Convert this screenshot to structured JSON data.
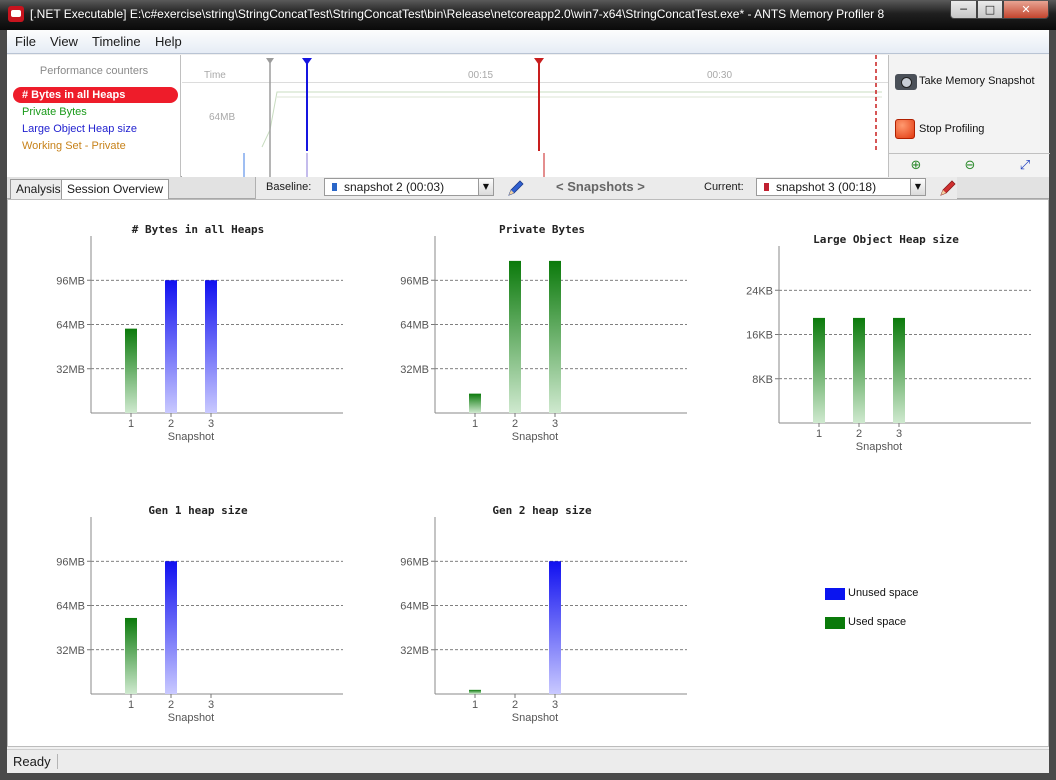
{
  "window": {
    "title": "[.NET Executable] E:\\c#exercise\\string\\StringConcatTest\\StringConcatTest\\bin\\Release\\netcoreapp2.0\\win7-x64\\StringConcatTest.exe* - ANTS Memory Profiler 8",
    "minimize": "─",
    "maximize": "□",
    "close": "✕"
  },
  "menu": {
    "file": "File",
    "view": "View",
    "timeline": "Timeline",
    "help": "Help"
  },
  "counters": {
    "title": "Performance counters",
    "items": [
      {
        "label": "# Bytes in all Heaps",
        "color": "#ffffff",
        "selected": true
      },
      {
        "label": "Private Bytes",
        "color": "#1a9a1a",
        "selected": false
      },
      {
        "label": "Large Object Heap size",
        "color": "#1f1fcf",
        "selected": false
      },
      {
        "label": "Working Set - Private",
        "color": "#c7821a",
        "selected": false
      }
    ]
  },
  "timeline": {
    "time_label": "Time",
    "tick_1": "00:15",
    "tick_2": "00:30",
    "y_label": "64MB"
  },
  "actions": {
    "take_snapshot": "Take Memory Snapshot",
    "stop_profiling": "Stop Profiling",
    "zoom_in_icon": "zoom-in-icon",
    "zoom_out_icon": "zoom-out-icon",
    "fit_icon": "fit-icon"
  },
  "tabs": {
    "analysis": "Analysis",
    "session_overview": "Session Overview"
  },
  "snapshot_bar": {
    "baseline_label": "Baseline:",
    "baseline_value": "snapshot 2 (00:03)",
    "baseline_color": "#2a66c8",
    "nav_label": "< Snapshots >",
    "current_label": "Current:",
    "current_value": "snapshot 3 (00:18)",
    "current_color": "#c02030"
  },
  "chart_data": [
    {
      "type": "bar",
      "title": "# Bytes in all Heaps",
      "xlabel": "Snapshot",
      "categories": [
        "1",
        "2",
        "3"
      ],
      "values": [
        61,
        96,
        96
      ],
      "bar_colors": [
        "green",
        "blue",
        "blue"
      ],
      "yticks": [
        {
          "v": 32,
          "label": "32MB"
        },
        {
          "v": 64,
          "label": "64MB"
        },
        {
          "v": 96,
          "label": "96MB"
        }
      ],
      "ylim": [
        0,
        128
      ]
    },
    {
      "type": "bar",
      "title": "Private Bytes",
      "xlabel": "Snapshot",
      "categories": [
        "1",
        "2",
        "3"
      ],
      "values": [
        14,
        110,
        110
      ],
      "bar_colors": [
        "green",
        "green",
        "green"
      ],
      "yticks": [
        {
          "v": 32,
          "label": "32MB"
        },
        {
          "v": 64,
          "label": "64MB"
        },
        {
          "v": 96,
          "label": "96MB"
        }
      ],
      "ylim": [
        0,
        128
      ]
    },
    {
      "type": "bar",
      "title": "Large Object Heap size",
      "xlabel": "Snapshot",
      "categories": [
        "1",
        "2",
        "3"
      ],
      "values": [
        19,
        19,
        19
      ],
      "bar_colors": [
        "green",
        "green",
        "green"
      ],
      "yticks": [
        {
          "v": 8,
          "label": "8KB"
        },
        {
          "v": 16,
          "label": "16KB"
        },
        {
          "v": 24,
          "label": "24KB"
        }
      ],
      "ylim": [
        0,
        32
      ]
    },
    {
      "type": "bar",
      "title": "Gen 1 heap size",
      "xlabel": "Snapshot",
      "categories": [
        "1",
        "2",
        "3"
      ],
      "values": [
        55,
        96,
        0
      ],
      "bar_colors": [
        "green",
        "blue",
        "green"
      ],
      "yticks": [
        {
          "v": 32,
          "label": "32MB"
        },
        {
          "v": 64,
          "label": "64MB"
        },
        {
          "v": 96,
          "label": "96MB"
        }
      ],
      "ylim": [
        0,
        128
      ]
    },
    {
      "type": "bar",
      "title": "Gen 2 heap size",
      "xlabel": "Snapshot",
      "categories": [
        "1",
        "2",
        "3"
      ],
      "values": [
        3,
        0,
        96
      ],
      "bar_colors": [
        "green",
        "green",
        "blue"
      ],
      "yticks": [
        {
          "v": 32,
          "label": "32MB"
        },
        {
          "v": 64,
          "label": "64MB"
        },
        {
          "v": 96,
          "label": "96MB"
        }
      ],
      "ylim": [
        0,
        128
      ]
    }
  ],
  "legend": [
    {
      "label": "Unused space",
      "color": "#0a14f0"
    },
    {
      "label": "Used space",
      "color": "#0a7a0a"
    }
  ],
  "status": {
    "text": "Ready"
  }
}
